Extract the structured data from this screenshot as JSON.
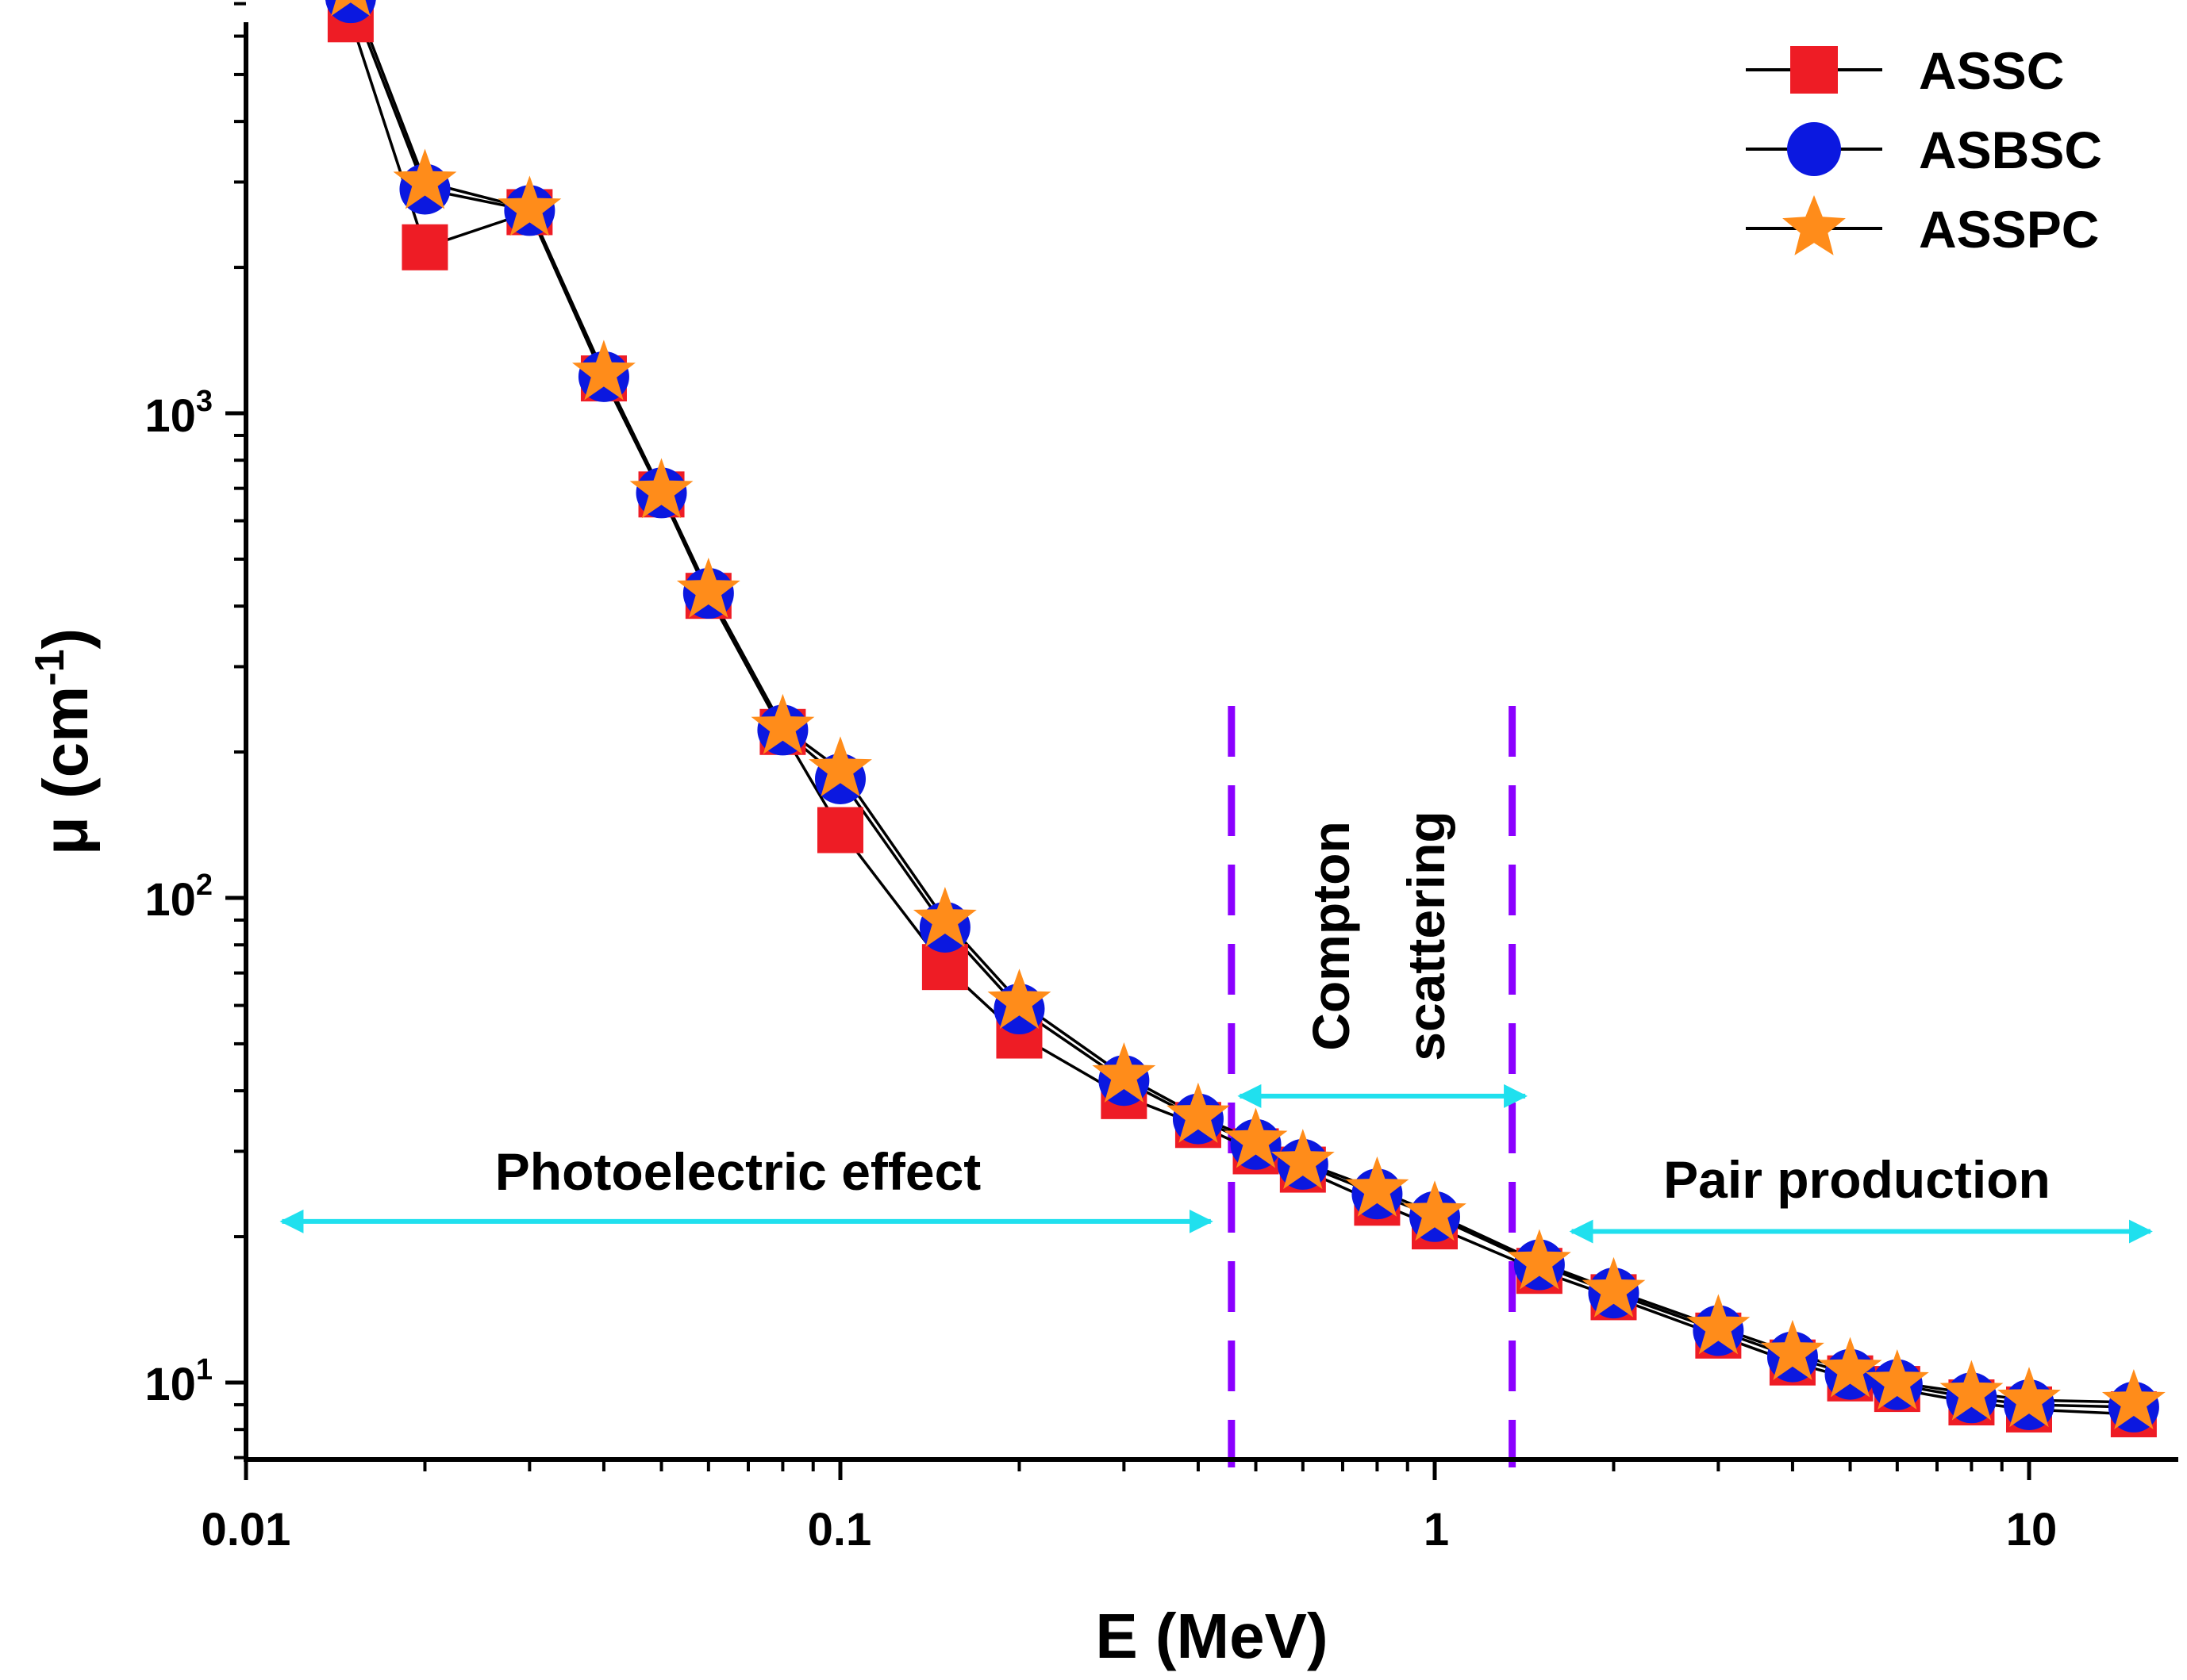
{
  "chart_data": {
    "type": "line",
    "xscale": "log",
    "yscale": "log",
    "xlim": [
      0.01,
      16
    ],
    "ylim": [
      7,
      8500
    ],
    "xlabel": "E (MeV)",
    "ylabel_main": "μ (cm",
    "ylabel_sup": "-1",
    "ylabel_close": ")",
    "x_ticks": [
      {
        "value": 0.01,
        "label": "0.01"
      },
      {
        "value": 0.1,
        "label": "0.1"
      },
      {
        "value": 1,
        "label": "1"
      },
      {
        "value": 10,
        "label": "10"
      }
    ],
    "y_ticks": [
      {
        "value": 10,
        "base": "10",
        "exp": "1"
      },
      {
        "value": 100,
        "base": "10",
        "exp": "2"
      },
      {
        "value": 1000,
        "base": "10",
        "exp": "3"
      }
    ],
    "x": [
      0.015,
      0.02,
      0.03,
      0.04,
      0.05,
      0.06,
      0.08,
      0.1,
      0.15,
      0.2,
      0.3,
      0.4,
      0.5,
      0.6,
      0.8,
      1.0,
      1.5,
      2,
      3,
      4,
      5,
      6,
      8,
      10,
      15
    ],
    "series": [
      {
        "name": "ASSC",
        "marker": "square",
        "color": "#ee1c25",
        "values": [
          6500,
          2200,
          2600,
          1180,
          680,
          420,
          220,
          138,
          72,
          52,
          39,
          34,
          30,
          27.5,
          23.5,
          21,
          17,
          15,
          12.5,
          11,
          10.2,
          9.7,
          9.1,
          8.8,
          8.6
        ]
      },
      {
        "name": "ASBSC",
        "marker": "circle",
        "color": "#0b18e0",
        "values": [
          7200,
          2900,
          2620,
          1190,
          685,
          425,
          222,
          176,
          87,
          59,
          42,
          35,
          31,
          28.2,
          24.5,
          22,
          17.5,
          15.3,
          12.8,
          11.3,
          10.4,
          9.9,
          9.3,
          9.0,
          8.9
        ]
      },
      {
        "name": "ASSPC",
        "marker": "star",
        "color": "#ff8c1a",
        "values": [
          7500,
          3000,
          2640,
          1210,
          690,
          430,
          225,
          184,
          90,
          61,
          43,
          35.5,
          31.5,
          28.5,
          25,
          22.3,
          17.7,
          15.5,
          13,
          11.5,
          10.6,
          10.0,
          9.5,
          9.2,
          9.1
        ]
      }
    ],
    "regions": [
      {
        "label": "Photoelectric effect",
        "x_from": 0.0115,
        "x_to": 0.42,
        "y": 21.5,
        "label_y": 36
      },
      {
        "label": "Pair production",
        "x_from": 1.7,
        "x_to": 16,
        "y": 20.5,
        "label_y": 34
      },
      {
        "label_line1": "Compton",
        "label_line2": "scattering",
        "x_from": 0.47,
        "x_to": 1.42,
        "y": 39
      }
    ],
    "boundaries": [
      0.455,
      1.35
    ],
    "colors": {
      "arrow": "#20e0ee",
      "boundary": "#8b00ff",
      "line": "#000000"
    },
    "legend_position": "top-right"
  }
}
